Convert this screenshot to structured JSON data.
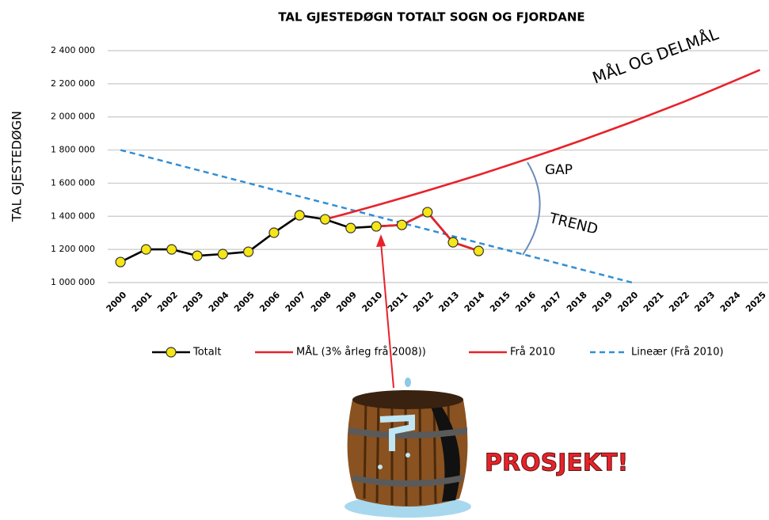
{
  "chart_data": {
    "type": "line",
    "title": "TAL GJESTEDØGN TOTALT SOGN OG FJORDANE",
    "y_label": "TAL GJESTEDØGN",
    "categories": [
      "2000",
      "2001",
      "2002",
      "2003",
      "2004",
      "2005",
      "2006",
      "2007",
      "2008",
      "2009",
      "2010",
      "2011",
      "2012",
      "2013",
      "2014",
      "2015",
      "2016",
      "2017",
      "2018",
      "2019",
      "2020",
      "2021",
      "2022",
      "2023",
      "2024",
      "2025"
    ],
    "ylim": [
      1000000,
      2400000
    ],
    "yticks": [
      {
        "value": 1000000,
        "label": "1 000 000"
      },
      {
        "value": 1200000,
        "label": "1 200 000"
      },
      {
        "value": 1400000,
        "label": "1 400 000"
      },
      {
        "value": 1600000,
        "label": "1 600 000"
      },
      {
        "value": 1800000,
        "label": "1 800 000"
      },
      {
        "value": 2000000,
        "label": "2 000 000"
      },
      {
        "value": 2200000,
        "label": "2 200 000"
      },
      {
        "value": 2400000,
        "label": "2 400 000"
      }
    ],
    "grid": true,
    "series": [
      {
        "name": "Totalt",
        "color": "#000000",
        "marker": true,
        "dashed": false,
        "values": [
          1124000,
          1200000,
          1200000,
          1162000,
          1172000,
          1186000,
          1301000,
          1406000,
          1382000,
          1329000,
          1339000,
          1348000,
          1425000,
          1243000,
          1191000,
          null,
          null,
          null,
          null,
          null,
          null,
          null,
          null,
          null,
          null,
          null
        ]
      },
      {
        "name": "MÅL (3% årleg frå 2008))",
        "color": "#e8222a",
        "marker": false,
        "dashed": false,
        "values": [
          null,
          null,
          null,
          null,
          null,
          null,
          null,
          null,
          1382000,
          1423000,
          1466000,
          1510000,
          1555000,
          1602000,
          1650000,
          1700000,
          1751000,
          1803000,
          1857000,
          1913000,
          1970000,
          2030000,
          2090000,
          2153000,
          2218000,
          2284000
        ]
      },
      {
        "name": "Frå 2010",
        "color": "#e8222a",
        "marker": false,
        "dashed": false,
        "values": [
          null,
          null,
          null,
          null,
          null,
          null,
          null,
          null,
          null,
          null,
          1339000,
          1348000,
          1425000,
          1243000,
          1191000,
          null,
          null,
          null,
          null,
          null,
          null,
          null,
          null,
          null,
          null,
          null
        ]
      },
      {
        "name": "Lineær (Frå 2010)",
        "color": "#2f8fd6",
        "marker": false,
        "dashed": true,
        "values": [
          1800000,
          1760000,
          1720000,
          1680000,
          1640000,
          1600000,
          1560000,
          1520000,
          1480000,
          1440000,
          1400000,
          1360000,
          1320000,
          1280000,
          1240000,
          1200000,
          1160000,
          1120000,
          1080000,
          1040000,
          1000000,
          null,
          null,
          null,
          null,
          null
        ]
      }
    ],
    "annotations": [
      "MÅL OG DELMÅL",
      "GAP",
      "TREND",
      "PROSJEKT!"
    ]
  }
}
